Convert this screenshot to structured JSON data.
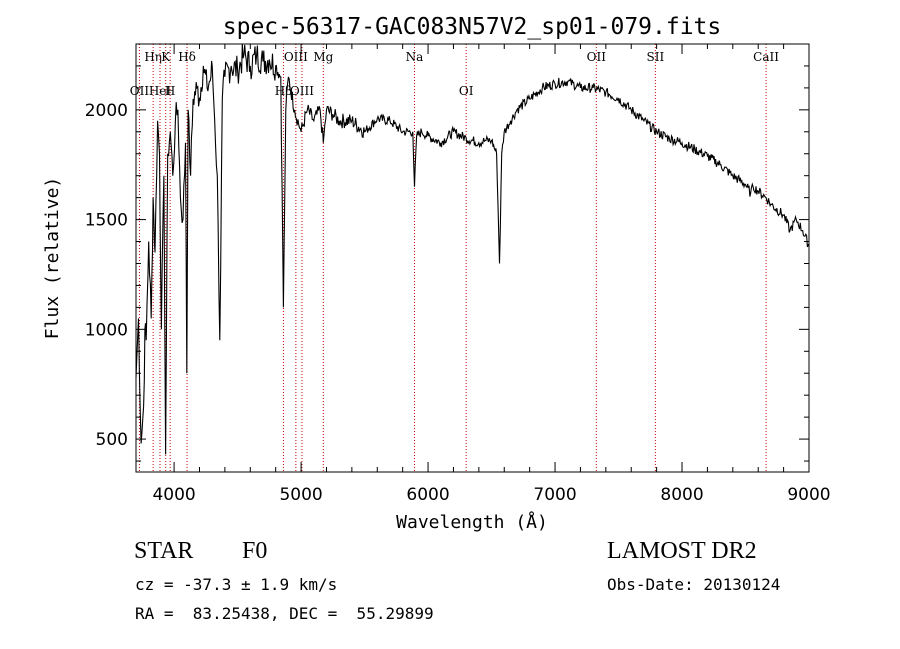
{
  "chart_data": {
    "type": "line",
    "title": "spec-56317-GAC083N57V2_sp01-079.fits",
    "xlabel": "Wavelength (Å)",
    "ylabel": "Flux (relative)",
    "xlim": [
      3700,
      9000
    ],
    "ylim": [
      350,
      2300
    ],
    "x_ticks": [
      4000,
      5000,
      6000,
      7000,
      8000,
      9000
    ],
    "y_ticks": [
      500,
      1000,
      1500,
      2000
    ],
    "grid": false,
    "series": [
      {
        "x": [
          3700,
          3720,
          3740,
          3760,
          3770,
          3780,
          3800,
          3820,
          3835,
          3850,
          3870,
          3885,
          3900,
          3920,
          3933,
          3950,
          3970,
          3990,
          4010,
          4030,
          4050,
          4070,
          4090,
          4100,
          4110,
          4130,
          4150,
          4180,
          4200,
          4230,
          4260,
          4290,
          4300,
          4320,
          4340,
          4360,
          4380,
          4400,
          4450,
          4500,
          4550,
          4600,
          4650,
          4700,
          4750,
          4800,
          4840,
          4861,
          4880,
          4900,
          4950,
          5000,
          5050,
          5100,
          5150,
          5175,
          5200,
          5250,
          5300,
          5400,
          5500,
          5600,
          5700,
          5800,
          5880,
          5893,
          5910,
          5950,
          6000,
          6100,
          6200,
          6300,
          6400,
          6450,
          6500,
          6540,
          6563,
          6580,
          6600,
          6650,
          6700,
          6800,
          6900,
          7000,
          7100,
          7200,
          7300,
          7400,
          7500,
          7600,
          7700,
          7800,
          7900,
          8000,
          8100,
          8200,
          8300,
          8400,
          8500,
          8540,
          8560,
          8600,
          8662,
          8700,
          8800,
          8850,
          8900,
          8950,
          9000
        ],
        "y": [
          780,
          1050,
          480,
          650,
          1000,
          950,
          1400,
          1050,
          1600,
          1350,
          1950,
          1800,
          1000,
          1700,
          430,
          1800,
          1900,
          1700,
          1950,
          2000,
          1600,
          1500,
          1850,
          800,
          2000,
          1700,
          2050,
          2100,
          2050,
          2200,
          2100,
          2150,
          2200,
          1950,
          1700,
          950,
          2050,
          2150,
          2200,
          2180,
          2250,
          2200,
          2250,
          2220,
          2230,
          2200,
          2150,
          1100,
          2000,
          2150,
          2000,
          1900,
          2000,
          1950,
          2000,
          1850,
          2000,
          1980,
          1950,
          1950,
          1900,
          1960,
          1950,
          1900,
          1900,
          1650,
          1880,
          1900,
          1880,
          1850,
          1900,
          1870,
          1850,
          1860,
          1860,
          1800,
          1300,
          1800,
          1900,
          1950,
          2000,
          2050,
          2100,
          2120,
          2130,
          2100,
          2100,
          2080,
          2050,
          2000,
          1950,
          1900,
          1870,
          1850,
          1820,
          1790,
          1750,
          1700,
          1660,
          1620,
          1650,
          1630,
          1600,
          1570,
          1520,
          1450,
          1500,
          1450,
          1380
        ]
      }
    ],
    "spectral_lines": [
      {
        "label": "OII",
        "x": 3727
      },
      {
        "label": "Hη",
        "x": 3835
      },
      {
        "label": "HeI",
        "x": 3889
      },
      {
        "label": "K",
        "x": 3934
      },
      {
        "label": "H",
        "x": 3969
      },
      {
        "label": "Hδ",
        "x": 4102
      },
      {
        "label": "Hβ",
        "x": 4861
      },
      {
        "label": "OIII",
        "x": 4959
      },
      {
        "label": "OIII",
        "x": 5007
      },
      {
        "label": "Mg",
        "x": 5175
      },
      {
        "label": "Na",
        "x": 5893
      },
      {
        "label": "OI",
        "x": 6300
      },
      {
        "label": "OII",
        "x": 7325
      },
      {
        "label": "SII",
        "x": 7790
      },
      {
        "label": "CaII",
        "x": 8662
      }
    ],
    "line_color": "#000000",
    "marker_color": "#cc0000"
  },
  "info": {
    "class": "STAR",
    "subclass": "F0",
    "survey": "LAMOST DR2",
    "cz": "cz = -37.3 ± 1.9 km/s",
    "obs_date": "Obs-Date: 20130124",
    "coords": "RA =  83.25438, DEC =  55.29899"
  }
}
